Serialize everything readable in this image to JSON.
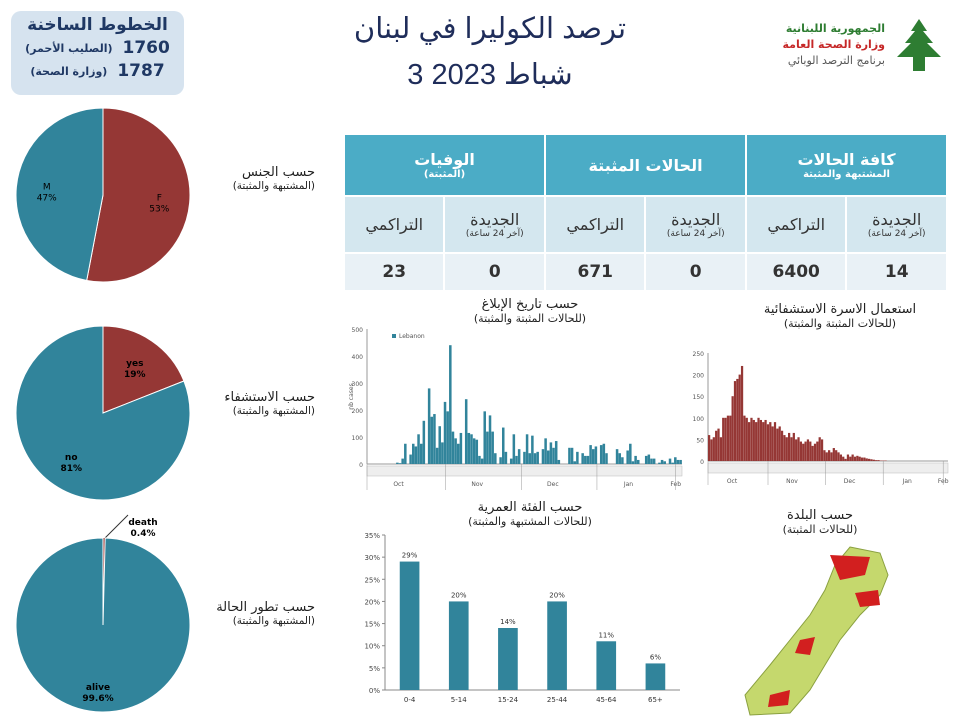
{
  "hotline": {
    "title": "الخطوط الساخنة",
    "rows": [
      {
        "number": "1760",
        "label": "(الصليب الأحمر)"
      },
      {
        "number": "1787",
        "label": "(وزارة الصحة)"
      }
    ]
  },
  "header": {
    "title": "ترصد الكوليرا في لبنان",
    "date": "3 شباط 2023"
  },
  "logo": {
    "line1": "الجمهورية اللبنانية",
    "line2": "وزارة الصحة العامة",
    "line3": "برنامج الترصد الوبائي"
  },
  "colors": {
    "teal": "#31849b",
    "red": "#953735",
    "header": "#4bacc6"
  },
  "table": {
    "groups": [
      {
        "title": "كافة الحالات",
        "sub": "المشتبهة والمثبتة"
      },
      {
        "title": "الحالات المثبتة",
        "sub": ""
      },
      {
        "title": "الوفيات",
        "sub": "(المثبتة)"
      }
    ],
    "new_label": "الجديدة",
    "new_sub": "(آخر 24 ساعة)",
    "cum_label": "التراكمي",
    "values": [
      "14",
      "6400",
      "0",
      "671",
      "0",
      "23"
    ]
  },
  "sections": {
    "sex": {
      "title": "حسب الجنس",
      "sub": "(المشتبهة والمثبتة)"
    },
    "hosp": {
      "title": "حسب الاستشفاء",
      "sub": "(المشتبهة والمثبتة)"
    },
    "outcome": {
      "title": "حسب تطور الحالة",
      "sub": "(المشتبهة والمثبتة)"
    },
    "report": {
      "title": "حسب تاريخ الإبلاغ",
      "sub": "(للحالات المثبتة والمثبتة)"
    },
    "famwater": {
      "title": "استعمال الاسرة الاستشفائية",
      "sub": "(للحالات المثبتة والمثبتة)"
    },
    "age": {
      "title": "حسب الفئة العمرية",
      "sub": "(للحالات المشتبهة والمثبتة)"
    },
    "town": {
      "title": "حسب البلدة",
      "sub": "(للحالات المثبتة)"
    }
  },
  "chart_data": [
    {
      "type": "pie",
      "id": "sex",
      "labels": [
        "F",
        "M"
      ],
      "values": [
        53,
        47
      ],
      "display": [
        "53%",
        "47%"
      ]
    },
    {
      "type": "pie",
      "id": "hosp",
      "labels": [
        "yes",
        "no"
      ],
      "values": [
        19,
        81
      ],
      "display": [
        "19%",
        "81%"
      ]
    },
    {
      "type": "pie",
      "id": "outcome",
      "labels": [
        "death",
        "alive"
      ],
      "values": [
        0.4,
        99.6
      ],
      "display": [
        "0.4%",
        "99.6%"
      ]
    },
    {
      "type": "bar",
      "id": "report",
      "legend": "Lebanon",
      "ylabel": "nb cases",
      "ylim": [
        0,
        500
      ],
      "yticks": [
        0,
        100,
        200,
        300,
        400,
        500
      ],
      "months": [
        "Oct",
        "Nov",
        "Dec",
        "Jan",
        "Feb"
      ],
      "values": [
        0,
        0,
        0,
        0,
        0,
        0,
        0,
        0,
        0,
        0,
        0,
        5,
        3,
        20,
        75,
        0,
        35,
        75,
        65,
        110,
        75,
        160,
        0,
        280,
        175,
        185,
        60,
        140,
        80,
        230,
        195,
        440,
        120,
        95,
        75,
        115,
        0,
        240,
        115,
        110,
        95,
        90,
        30,
        20,
        195,
        120,
        180,
        120,
        40,
        0,
        25,
        135,
        45,
        0,
        20,
        110,
        30,
        55,
        0,
        45,
        110,
        40,
        105,
        40,
        45,
        0,
        55,
        95,
        50,
        80,
        60,
        85,
        15,
        0,
        0,
        0,
        60,
        60,
        10,
        45,
        0,
        40,
        30,
        30,
        70,
        55,
        65,
        0,
        70,
        75,
        40,
        0,
        0,
        0,
        55,
        40,
        25,
        0,
        50,
        75,
        10,
        30,
        15,
        0,
        0,
        30,
        35,
        20,
        20,
        0,
        5,
        15,
        10,
        0,
        20,
        5,
        25,
        15,
        15
      ],
      "color": "#31849b"
    },
    {
      "type": "bar",
      "id": "famwater",
      "ylim": [
        0,
        250
      ],
      "yticks": [
        0,
        50,
        100,
        150,
        200,
        250
      ],
      "months": [
        "Oct",
        "Nov",
        "Dec",
        "Jan",
        "Feb"
      ],
      "values": [
        60,
        50,
        55,
        70,
        75,
        55,
        100,
        100,
        105,
        105,
        150,
        185,
        190,
        200,
        220,
        105,
        100,
        90,
        100,
        95,
        90,
        100,
        95,
        90,
        95,
        85,
        90,
        80,
        90,
        75,
        80,
        70,
        60,
        55,
        65,
        55,
        65,
        50,
        55,
        45,
        40,
        45,
        50,
        45,
        35,
        40,
        45,
        55,
        50,
        25,
        20,
        25,
        20,
        30,
        25,
        20,
        15,
        10,
        5,
        15,
        10,
        15,
        10,
        12,
        10,
        8,
        8,
        6,
        5,
        4,
        3,
        2,
        2,
        1,
        1,
        1,
        0,
        0,
        0,
        0,
        0,
        0,
        0,
        0,
        0,
        0,
        0,
        0,
        0,
        0,
        0,
        0,
        0,
        0,
        0,
        0,
        0,
        0,
        0,
        0,
        0,
        0
      ],
      "color": "#953735"
    },
    {
      "type": "bar",
      "id": "age",
      "categories": [
        "0-4",
        "5-14",
        "15-24",
        "25-44",
        "45-64",
        "65+"
      ],
      "values": [
        29,
        20,
        14,
        20,
        11,
        6
      ],
      "labels": [
        "29%",
        "20%",
        "14%",
        "20%",
        "11%",
        "6%"
      ],
      "ylim": [
        0,
        35
      ],
      "yticks": [
        "0%",
        "5%",
        "10%",
        "15%",
        "20%",
        "25%",
        "30%",
        "35%"
      ],
      "color": "#31849b"
    }
  ]
}
